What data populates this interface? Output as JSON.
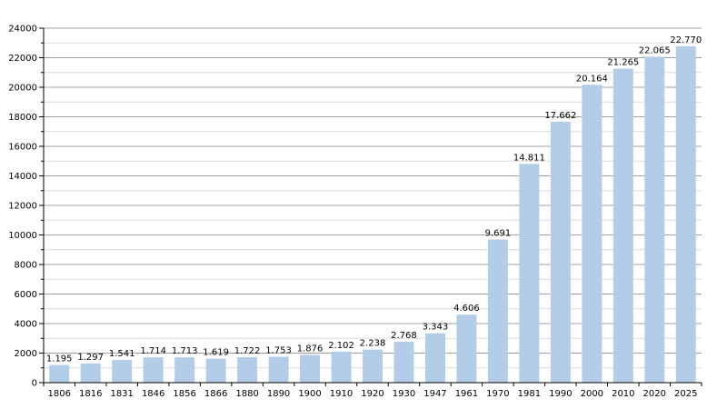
{
  "chart_data": {
    "type": "bar",
    "title": "",
    "xlabel": "",
    "ylabel": "",
    "ylim": [
      0,
      24000
    ],
    "ytick_step": 2000,
    "ytick_labels": [
      "0",
      "2000",
      "4000",
      "6000",
      "8000",
      "10000",
      "12000",
      "14000",
      "16000",
      "18000",
      "20000",
      "22000",
      "24000"
    ],
    "grid": true,
    "categories": [
      "1806",
      "1816",
      "1831",
      "1846",
      "1856",
      "1866",
      "1880",
      "1890",
      "1900",
      "1910",
      "1920",
      "1930",
      "1947",
      "1961",
      "1970",
      "1981",
      "1990",
      "2000",
      "2010",
      "2020",
      "2025"
    ],
    "values": [
      1195,
      1297,
      1541,
      1714,
      1713,
      1619,
      1722,
      1753,
      1876,
      2102,
      2238,
      2768,
      3343,
      4606,
      9691,
      14811,
      17662,
      20164,
      21265,
      22065,
      22770
    ],
    "value_labels": [
      "1.195",
      "1.297",
      "1.541",
      "1.714",
      "1.713",
      "1.619",
      "1.722",
      "1.753",
      "1.876",
      "2.102",
      "2.238",
      "2.768",
      "3.343",
      "4.606",
      "9.691",
      "14.811",
      "17.662",
      "20.164",
      "21.265",
      "22.065",
      "22.770"
    ],
    "colors": {
      "bar": "#b3cde8",
      "grid_major": "#a0a0a0",
      "grid_minor": "#dcdcdc",
      "axis": "#000000"
    }
  }
}
